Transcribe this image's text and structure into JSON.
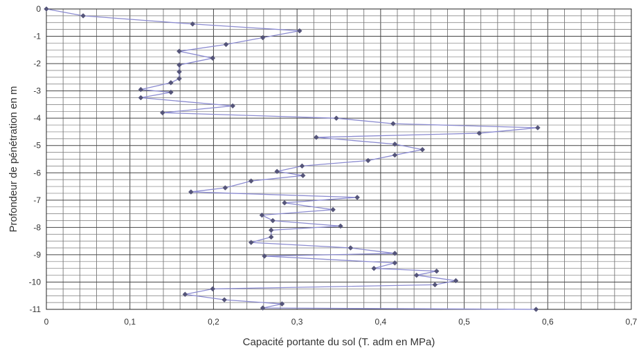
{
  "chart_data": {
    "type": "scatter",
    "title": "",
    "xlabel": "Capacité portante du sol (T. adm en MPa)",
    "ylabel": "Profondeur de pénétration en m",
    "xlim": [
      0,
      0.7
    ],
    "ylim": [
      -11,
      0
    ],
    "x_ticks": [
      "0",
      "0,1",
      "0,2",
      "0,3",
      "0,4",
      "0,5",
      "0,6",
      "0,7"
    ],
    "y_ticks": [
      "0",
      "-1",
      "-2",
      "-3",
      "-4",
      "-5",
      "-6",
      "-7",
      "-8",
      "-9",
      "-10",
      "-11"
    ],
    "grid": true,
    "legend": "none",
    "line_color": "#8a8ad0",
    "marker_color": "#55557a",
    "series": [
      {
        "x": [
          0,
          0.044,
          0.175,
          0.303,
          0.259,
          0.215,
          0.159,
          0.199,
          0.159,
          0.159,
          0.159,
          0.149,
          0.113,
          0.149,
          0.113,
          0.223,
          0.139,
          0.347,
          0.415,
          0.588,
          0.518,
          0.323,
          0.417,
          0.45,
          0.417,
          0.385,
          0.306,
          0.276,
          0.307,
          0.245,
          0.214,
          0.173,
          0.372,
          0.285,
          0.343,
          0.258,
          0.271,
          0.352,
          0.269,
          0.269,
          0.245,
          0.364,
          0.417,
          0.261,
          0.417,
          0.392,
          0.467,
          0.443,
          0.49,
          0.465,
          0.199,
          0.166,
          0.213,
          0.282,
          0.259,
          0.586
        ],
        "y": [
          0,
          -0.25,
          -0.55,
          -0.8,
          -1.05,
          -1.3,
          -1.55,
          -1.8,
          -2.05,
          -2.3,
          -2.55,
          -2.7,
          -2.95,
          -3.05,
          -3.25,
          -3.55,
          -3.8,
          -4.0,
          -4.2,
          -4.35,
          -4.55,
          -4.7,
          -4.95,
          -5.15,
          -5.35,
          -5.55,
          -5.75,
          -5.95,
          -6.1,
          -6.3,
          -6.55,
          -6.7,
          -6.9,
          -7.1,
          -7.35,
          -7.55,
          -7.75,
          -7.95,
          -8.1,
          -8.35,
          -8.55,
          -8.75,
          -8.95,
          -9.05,
          -9.3,
          -9.5,
          -9.6,
          -9.75,
          -9.95,
          -10.1,
          -10.25,
          -10.45,
          -10.65,
          -10.8,
          -10.95,
          -11.0
        ]
      }
    ]
  }
}
